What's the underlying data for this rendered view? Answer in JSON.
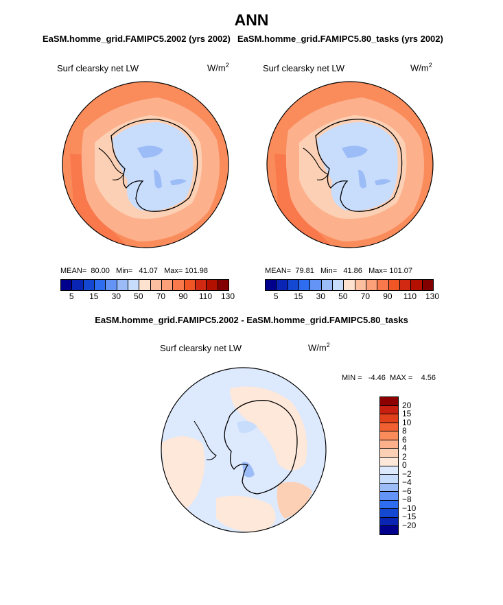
{
  "title": "ANN",
  "colors": {
    "level_fills": [
      "#00008c",
      "#0a24b4",
      "#1448d2",
      "#2e6cf0",
      "#6494f5",
      "#9cbcf7",
      "#c8dcfc",
      "#fde2d0",
      "#fcbfa0",
      "#fca07a",
      "#f9784c",
      "#f05526",
      "#d22a12",
      "#b41000",
      "#820000"
    ],
    "diff_fills": [
      "#00008c",
      "#0a24b4",
      "#1448d2",
      "#2e6cf0",
      "#6494f5",
      "#9cbcf7",
      "#c8dcfc",
      "#dde9fd",
      "#fde8da",
      "#fcd0b4",
      "#fcb08c",
      "#fa8c5c",
      "#f06030",
      "#e0401a",
      "#c82010",
      "#8c0000"
    ],
    "coast": "#000000"
  },
  "chart_data": [
    {
      "type": "heatmap",
      "title": "EaSM.homme_grid.FAMIPC5.2002 (yrs 2002)",
      "variable": "Surf clearsky net LW",
      "units": "W/m",
      "units_exp": "2",
      "stats": {
        "mean_label": "MEAN=",
        "mean": "80.00",
        "min_label": "Min=",
        "min": "41.07",
        "max_label": "Max=",
        "max": "101.98"
      },
      "colorbar": {
        "ticks": [
          "5",
          "15",
          "30",
          "50",
          "70",
          "90",
          "110",
          "130"
        ]
      }
    },
    {
      "type": "heatmap",
      "title": "EaSM.homme_grid.FAMIPC5.80_tasks (yrs 2002)",
      "variable": "Surf clearsky net LW",
      "units": "W/m",
      "units_exp": "2",
      "stats": {
        "mean_label": "MEAN=",
        "mean": "79.81",
        "min_label": "Min=",
        "min": "41.86",
        "max_label": "Max=",
        "max": "101.07"
      },
      "colorbar": {
        "ticks": [
          "5",
          "15",
          "30",
          "50",
          "70",
          "90",
          "110",
          "130"
        ]
      }
    },
    {
      "type": "heatmap",
      "title": "EaSM.homme_grid.FAMIPC5.2002 - EaSM.homme_grid.FAMIPC5.80_tasks",
      "variable": "Surf clearsky net LW",
      "units": "W/m",
      "units_exp": "2",
      "stats": {
        "min_label": "MIN =",
        "min": "-4.46",
        "max_label": "MAX =",
        "max": "4.56"
      },
      "colorbar": {
        "ticks": [
          "20",
          "15",
          "10",
          "8",
          "6",
          "4",
          "2",
          "0",
          "−2",
          "−4",
          "−6",
          "−8",
          "−10",
          "−15",
          "−20"
        ]
      }
    }
  ]
}
